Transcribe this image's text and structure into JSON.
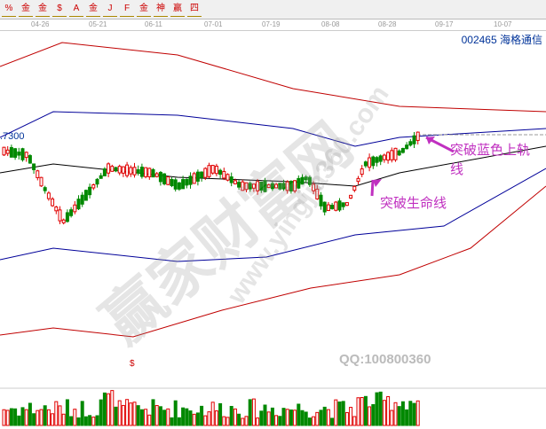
{
  "toolbar": {
    "icons": [
      "%",
      "金",
      "金",
      "$",
      "A",
      "金",
      "J",
      "F",
      "金",
      "神",
      "赢",
      "四"
    ]
  },
  "dates": [
    "04-26",
    "05-21",
    "06-11",
    "07-01",
    "07-19",
    "08-08",
    "08-28",
    "09-17",
    "10-07"
  ],
  "stock": {
    "code_name": "002465 海格通信",
    "price_label": ".7300"
  },
  "annotations": {
    "upper": "突破蓝色上轨",
    "upper2": "线",
    "life": "突破生命线"
  },
  "watermark": {
    "cn": "赢家财富网",
    "url": "www.yingjia360.com"
  },
  "qq": "QQ:100800360",
  "marker": "$",
  "colors": {
    "up": "#e00000",
    "down": "#008800",
    "band_outer": "#c00000",
    "band_inner": "#000099",
    "middle": "#000000",
    "annotation": "#c030c0"
  }
}
